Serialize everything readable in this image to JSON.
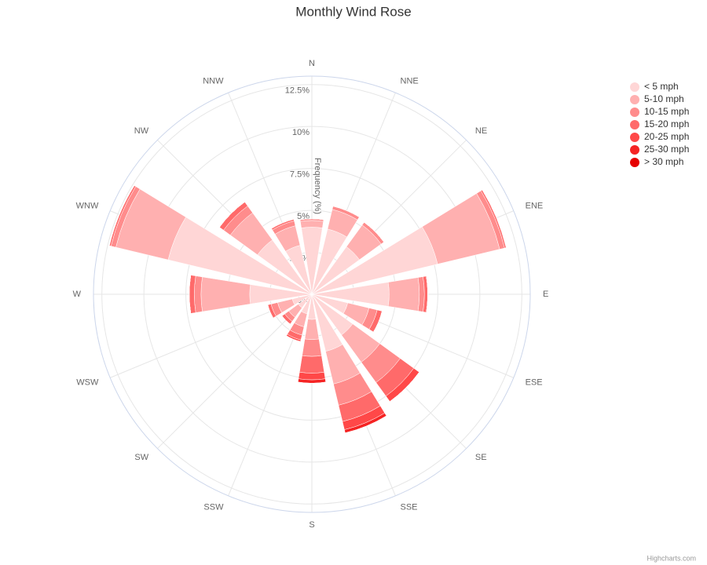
{
  "chart_data": {
    "type": "windrose",
    "title": "Monthly Wind Rose",
    "axis_label": "Frequency (%)",
    "credit": "Highcharts.com",
    "categories": [
      "N",
      "NNE",
      "NE",
      "ENE",
      "E",
      "ESE",
      "SE",
      "SSE",
      "S",
      "SSW",
      "SW",
      "WSW",
      "W",
      "WNW",
      "NW",
      "NNW"
    ],
    "ylim": [
      0,
      13
    ],
    "yticks": [
      {
        "value": 0,
        "label": "0%"
      },
      {
        "value": 2.5,
        "label": "2.5%"
      },
      {
        "value": 5,
        "label": "5%"
      },
      {
        "value": 7.5,
        "label": "7.5%"
      },
      {
        "value": 10,
        "label": "10%"
      },
      {
        "value": 12.5,
        "label": "12.5%"
      }
    ],
    "legend": "top-right",
    "grid": true,
    "series": [
      {
        "name": "< 5 mph",
        "color": "#ffd6d6",
        "values": [
          4.0,
          4.0,
          3.5,
          7.7,
          4.6,
          2.2,
          3.0,
          3.5,
          1.5,
          1.2,
          1.0,
          1.2,
          3.7,
          8.8,
          4.0,
          3.0
        ]
      },
      {
        "name": "5-10 mph",
        "color": "#ffb0b0",
        "values": [
          0.4,
          1.2,
          1.6,
          3.8,
          1.8,
          1.3,
          2.0,
          2.0,
          1.2,
          0.8,
          0.7,
          0.9,
          2.9,
          3.2,
          2.0,
          1.2
        ]
      },
      {
        "name": "10-15 mph",
        "color": "#ff8c8c",
        "values": [
          0.1,
          0.2,
          0.2,
          0.3,
          0.3,
          0.5,
          1.5,
          1.3,
          1.0,
          0.5,
          0.3,
          0.4,
          0.4,
          0.3,
          0.5,
          0.3
        ]
      },
      {
        "name": "15-20 mph",
        "color": "#ff6a6a",
        "values": [
          0,
          0,
          0,
          0.1,
          0.2,
          0.3,
          1.0,
          1.0,
          1.0,
          0.3,
          0.2,
          0.2,
          0.3,
          0.1,
          0.3,
          0.1
        ]
      },
      {
        "name": "20-25 mph",
        "color": "#ff4848",
        "values": [
          0,
          0,
          0,
          0,
          0,
          0,
          0.4,
          0.5,
          0.4,
          0.1,
          0,
          0,
          0,
          0,
          0,
          0
        ]
      },
      {
        "name": "25-30 mph",
        "color": "#f52424",
        "values": [
          0,
          0,
          0,
          0,
          0,
          0,
          0,
          0.2,
          0.2,
          0,
          0,
          0,
          0,
          0,
          0,
          0
        ]
      },
      {
        "name": "> 30 mph",
        "color": "#e60000",
        "values": [
          0,
          0,
          0,
          0,
          0,
          0,
          0,
          0,
          0,
          0,
          0,
          0,
          0,
          0,
          0,
          0
        ]
      }
    ]
  }
}
